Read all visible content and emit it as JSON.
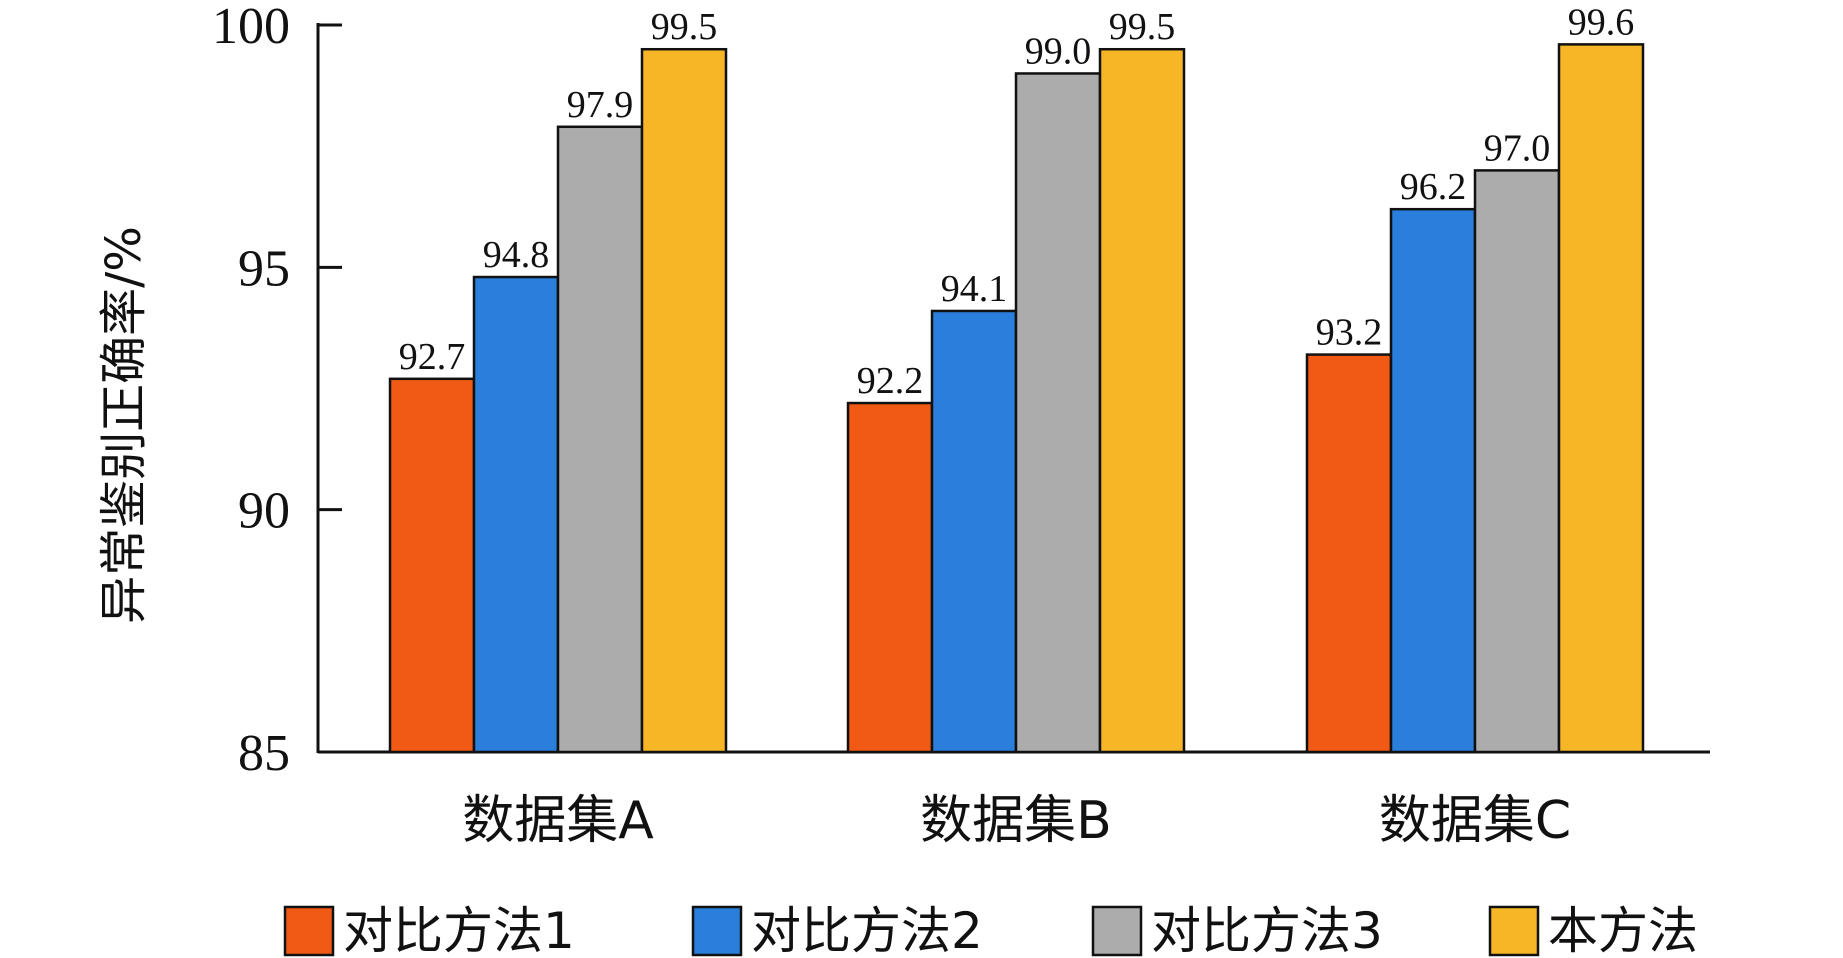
{
  "chart_data": {
    "type": "bar",
    "ylabel": "异常鉴别正确率/%",
    "ylim": [
      85,
      100
    ],
    "yticks": [
      85,
      90,
      95,
      100
    ],
    "categories": [
      "数据集A",
      "数据集B",
      "数据集C"
    ],
    "series": [
      {
        "name": "对比方法1",
        "color": "#f05a14",
        "values": [
          92.7,
          92.2,
          93.2
        ]
      },
      {
        "name": "对比方法2",
        "color": "#2a7fdc",
        "values": [
          94.8,
          94.1,
          96.2
        ]
      },
      {
        "name": "对比方法3",
        "color": "#acacac",
        "values": [
          97.9,
          99.0,
          97.0
        ]
      },
      {
        "name": "本方法",
        "color": "#f7b625",
        "values": [
          99.5,
          99.5,
          99.6
        ]
      }
    ],
    "legend_position": "bottom",
    "grid": false
  }
}
